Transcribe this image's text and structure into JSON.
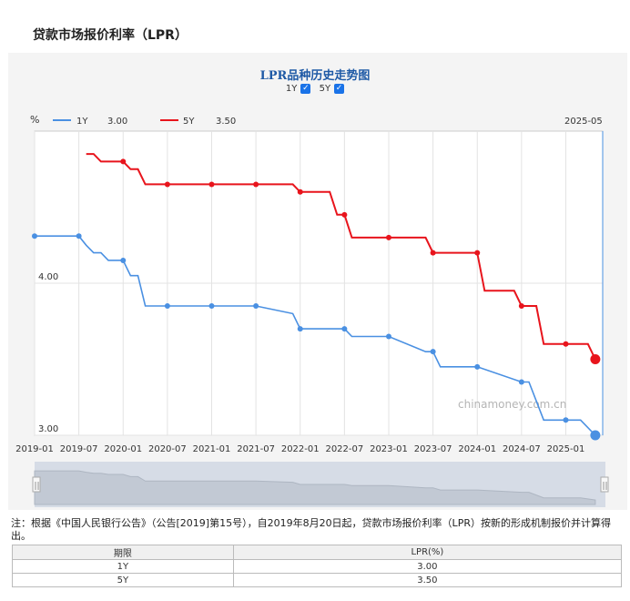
{
  "page_title": "贷款市场报价利率（LPR）",
  "chart_data": {
    "type": "line",
    "title": "LPR品种历史走势图",
    "toggles": [
      {
        "label": "1Y",
        "checked": true
      },
      {
        "label": "5Y",
        "checked": true
      }
    ],
    "y_unit": "%",
    "y_ticks": [
      "3.00",
      "4.00"
    ],
    "ylim": [
      3.0,
      5.0
    ],
    "x_ticks": [
      "2019-01",
      "2019-07",
      "2020-01",
      "2020-07",
      "2021-01",
      "2021-07",
      "2022-01",
      "2022-07",
      "2023-01",
      "2023-07",
      "2024-01",
      "2024-07",
      "2025-01"
    ],
    "xlim": [
      "2019-01",
      "2025-06"
    ],
    "cursor_label": "2025-05",
    "watermark": "chinamoney.com.cn",
    "series": [
      {
        "name": "1Y",
        "current": "3.00",
        "color": "#4a90e2",
        "points": [
          [
            "2019-01",
            4.31
          ],
          [
            "2019-07",
            4.31
          ],
          [
            "2019-08",
            4.25
          ],
          [
            "2019-09",
            4.2
          ],
          [
            "2019-10",
            4.2
          ],
          [
            "2019-11",
            4.15
          ],
          [
            "2019-12",
            4.15
          ],
          [
            "2020-01",
            4.15
          ],
          [
            "2020-02",
            4.05
          ],
          [
            "2020-03",
            4.05
          ],
          [
            "2020-04",
            3.85
          ],
          [
            "2020-07",
            3.85
          ],
          [
            "2021-01",
            3.85
          ],
          [
            "2021-07",
            3.85
          ],
          [
            "2021-12",
            3.8
          ],
          [
            "2022-01",
            3.7
          ],
          [
            "2022-07",
            3.7
          ],
          [
            "2022-08",
            3.65
          ],
          [
            "2023-01",
            3.65
          ],
          [
            "2023-06",
            3.55
          ],
          [
            "2023-07",
            3.55
          ],
          [
            "2023-08",
            3.45
          ],
          [
            "2024-01",
            3.45
          ],
          [
            "2024-07",
            3.35
          ],
          [
            "2024-08",
            3.35
          ],
          [
            "2024-10",
            3.1
          ],
          [
            "2025-01",
            3.1
          ],
          [
            "2025-03",
            3.1
          ],
          [
            "2025-05",
            3.0
          ]
        ]
      },
      {
        "name": "5Y",
        "current": "3.50",
        "color": "#e8141c",
        "points": [
          [
            "2019-08",
            4.85
          ],
          [
            "2019-09",
            4.85
          ],
          [
            "2019-10",
            4.8
          ],
          [
            "2019-12",
            4.8
          ],
          [
            "2020-01",
            4.8
          ],
          [
            "2020-02",
            4.75
          ],
          [
            "2020-03",
            4.75
          ],
          [
            "2020-04",
            4.65
          ],
          [
            "2020-07",
            4.65
          ],
          [
            "2021-01",
            4.65
          ],
          [
            "2021-07",
            4.65
          ],
          [
            "2021-12",
            4.65
          ],
          [
            "2022-01",
            4.6
          ],
          [
            "2022-05",
            4.6
          ],
          [
            "2022-06",
            4.45
          ],
          [
            "2022-07",
            4.45
          ],
          [
            "2022-08",
            4.3
          ],
          [
            "2023-01",
            4.3
          ],
          [
            "2023-06",
            4.3
          ],
          [
            "2023-07",
            4.2
          ],
          [
            "2024-01",
            4.2
          ],
          [
            "2024-02",
            3.95
          ],
          [
            "2024-06",
            3.95
          ],
          [
            "2024-07",
            3.85
          ],
          [
            "2024-09",
            3.85
          ],
          [
            "2024-10",
            3.6
          ],
          [
            "2025-01",
            3.6
          ],
          [
            "2025-04",
            3.6
          ],
          [
            "2025-05",
            3.5
          ]
        ]
      }
    ],
    "markers_1y": [
      [
        "2019-01",
        4.31
      ],
      [
        "2019-07",
        4.31
      ],
      [
        "2020-01",
        4.15
      ],
      [
        "2020-07",
        3.85
      ],
      [
        "2021-01",
        3.85
      ],
      [
        "2021-07",
        3.85
      ],
      [
        "2022-01",
        3.7
      ],
      [
        "2022-07",
        3.7
      ],
      [
        "2023-01",
        3.65
      ],
      [
        "2023-07",
        3.55
      ],
      [
        "2024-01",
        3.45
      ],
      [
        "2024-07",
        3.35
      ],
      [
        "2025-01",
        3.1
      ]
    ],
    "markers_5y": [
      [
        "2020-01",
        4.8
      ],
      [
        "2020-07",
        4.65
      ],
      [
        "2021-01",
        4.65
      ],
      [
        "2021-07",
        4.65
      ],
      [
        "2022-01",
        4.6
      ],
      [
        "2022-07",
        4.45
      ],
      [
        "2023-01",
        4.3
      ],
      [
        "2023-07",
        4.2
      ],
      [
        "2024-01",
        4.2
      ],
      [
        "2024-07",
        3.85
      ],
      [
        "2025-01",
        3.6
      ]
    ]
  },
  "note": "注：根据《中国人民银行公告》（公告[2019]第15号），自2019年8月20日起，贷款市场报价利率（LPR）按新的形成机制报价并计算得出。",
  "table": {
    "headers": [
      "期限",
      "LPR(%)"
    ],
    "rows": [
      [
        "1Y",
        "3.00"
      ],
      [
        "5Y",
        "3.50"
      ]
    ]
  }
}
